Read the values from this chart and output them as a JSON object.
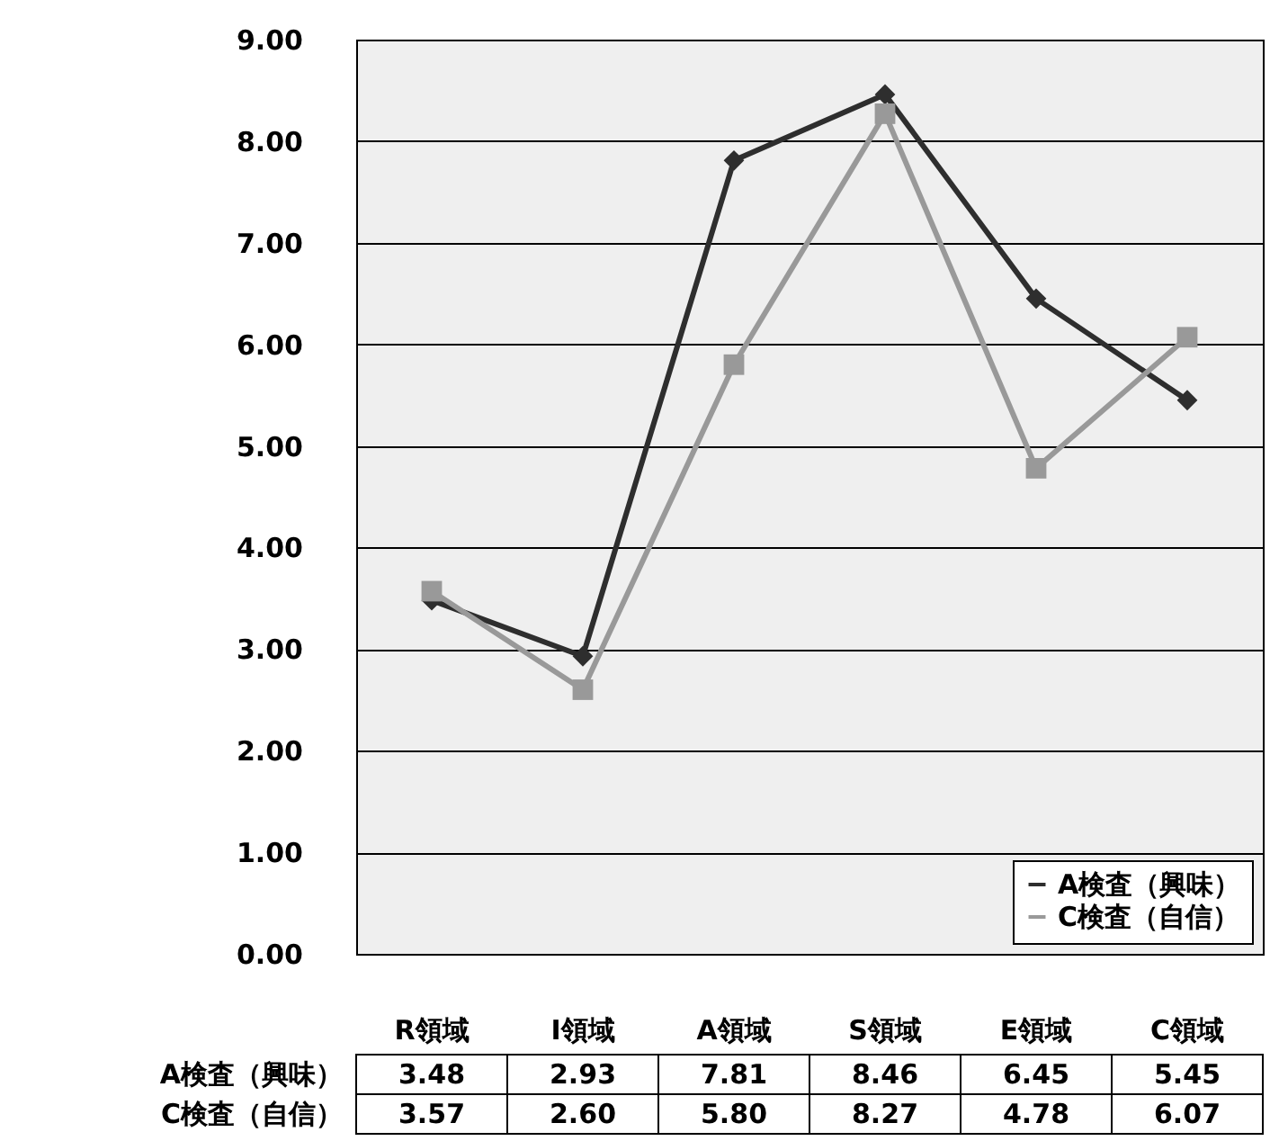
{
  "chart_data": {
    "type": "line",
    "categories": [
      "R領域",
      "I領域",
      "A領域",
      "S領域",
      "E領域",
      "C領域"
    ],
    "series": [
      {
        "name": "A検査（興味）",
        "color": "#2e2e2e",
        "marker": "diamond",
        "values": [
          3.48,
          2.93,
          7.81,
          8.46,
          6.45,
          5.45
        ],
        "value_labels": [
          "3.48",
          "2.93",
          "7.81",
          "8.46",
          "6.45",
          "5.45"
        ]
      },
      {
        "name": "C検査（自信）",
        "color": "#999999",
        "marker": "square",
        "values": [
          3.57,
          2.6,
          5.8,
          8.27,
          4.78,
          6.07
        ],
        "value_labels": [
          "3.57",
          "2.60",
          "5.80",
          "8.27",
          "4.78",
          "6.07"
        ]
      }
    ],
    "ylim": [
      0,
      9
    ],
    "yticks": [
      {
        "value": 0,
        "label": "0.00"
      },
      {
        "value": 1,
        "label": "1.00"
      },
      {
        "value": 2,
        "label": "2.00"
      },
      {
        "value": 3,
        "label": "3.00"
      },
      {
        "value": 4,
        "label": "4.00"
      },
      {
        "value": 5,
        "label": "5.00"
      },
      {
        "value": 6,
        "label": "6.00"
      },
      {
        "value": 7,
        "label": "7.00"
      },
      {
        "value": 8,
        "label": "8.00"
      },
      {
        "value": 9,
        "label": "9.00"
      }
    ],
    "grid": "y",
    "legend": "bottom right",
    "line_style": "solid"
  }
}
